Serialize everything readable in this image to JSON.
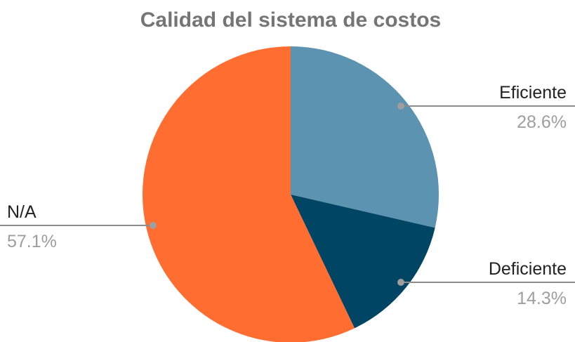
{
  "chart_data": {
    "type": "pie",
    "title": "Calidad del sistema de costos",
    "slices": [
      {
        "label": "Eficiente",
        "value": 28.6,
        "percent_label": "28.6%",
        "color": "#5b93b0"
      },
      {
        "label": "Deficiente",
        "value": 14.3,
        "percent_label": "14.3%",
        "color": "#004563"
      },
      {
        "label": "N/A",
        "value": 57.1,
        "percent_label": "57.1%",
        "color": "#ff6d31"
      }
    ],
    "start_angle_deg": 0,
    "direction": "clockwise"
  }
}
